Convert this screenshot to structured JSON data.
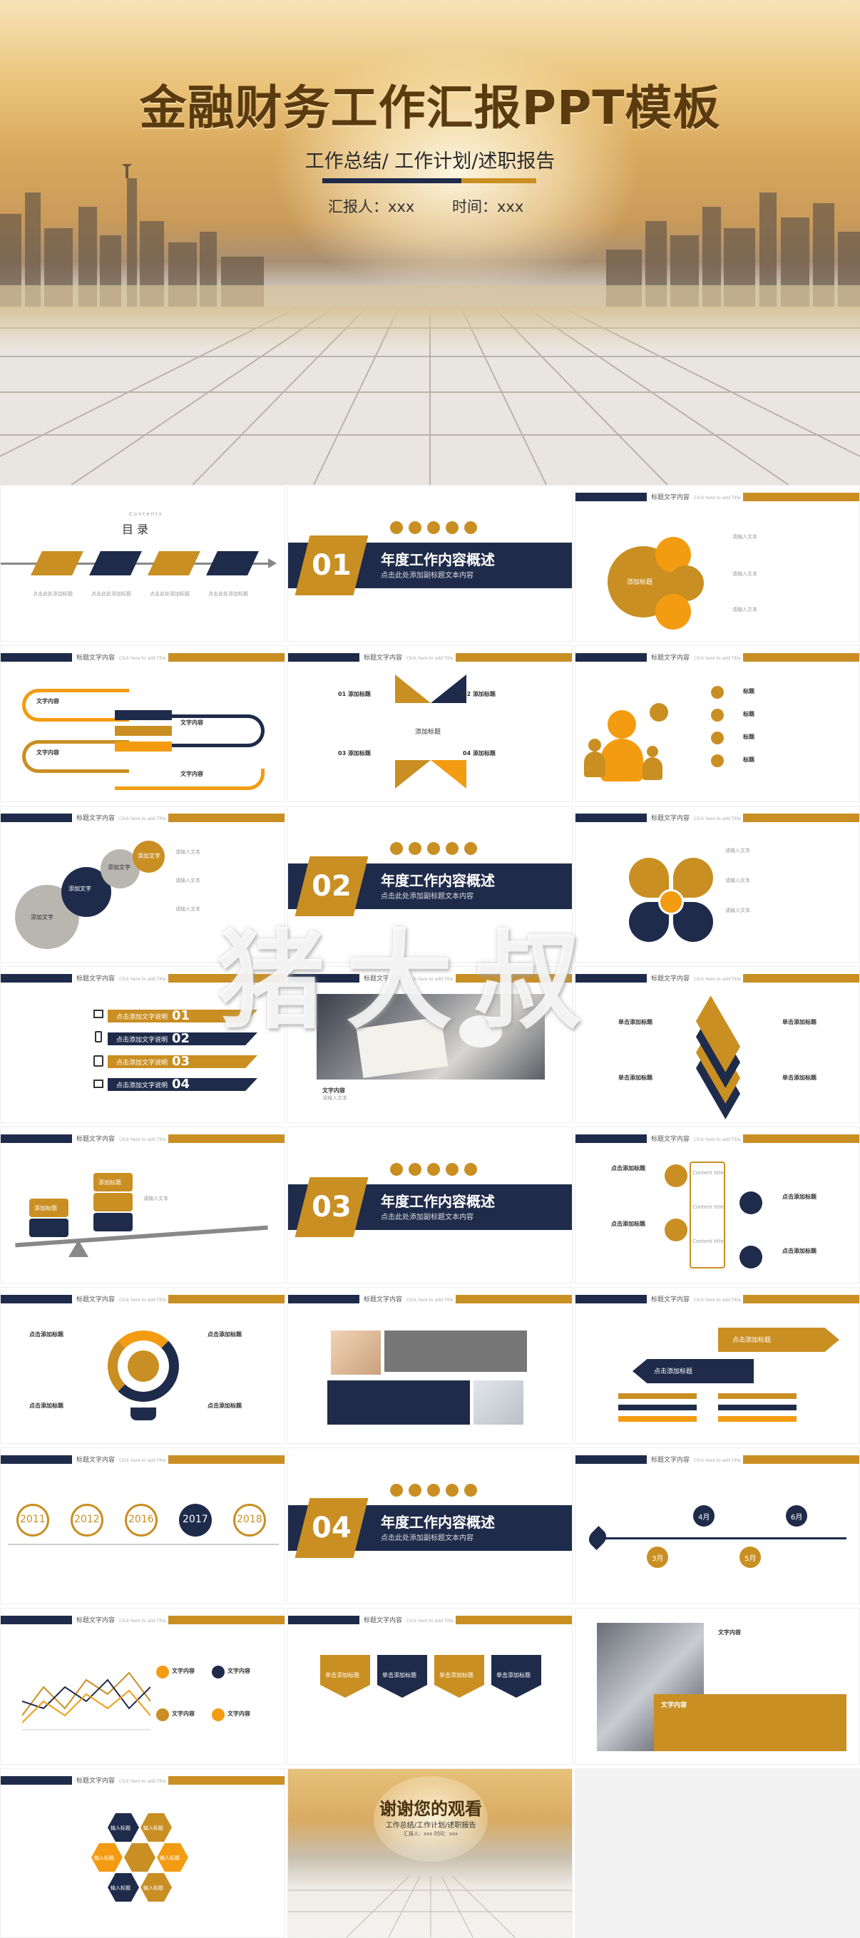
{
  "hero": {
    "title": "金融财务工作汇报PPT模板",
    "subtitle": "工作总结/ 工作计划/述职报告",
    "reporter": "汇报人：xxx",
    "time": "时间：xxx"
  },
  "header_text": "标题文字内容",
  "header_en": "Click here to add Title",
  "toc": {
    "contents": "Contents",
    "title": "目 录",
    "items": [
      "点击此处添加标题",
      "点击此处添加标题",
      "点击此处添加标题",
      "点击此处添加标题"
    ]
  },
  "sections": [
    {
      "num": "01",
      "title": "年度工作内容概述",
      "sub": "点击此处添加副标题文本内容"
    },
    {
      "num": "02",
      "title": "年度工作内容概述",
      "sub": "点击此处添加副标题文本内容"
    },
    {
      "num": "03",
      "title": "年度工作内容概述",
      "sub": "点击此处添加副标题文本内容"
    },
    {
      "num": "04",
      "title": "年度工作内容概述",
      "sub": "点击此处添加副标题文本内容"
    }
  ],
  "slide_labels": {
    "add_title": "添加标题",
    "add_text": "添加文本",
    "text_content": "文字内容",
    "add_text2": "添加文字",
    "click_add_title": "点击添加标题",
    "click_add_label": "点击添加标题",
    "click_text_desc": "点击添加文字说明",
    "content_title": "Content title",
    "input_title": "输入标题",
    "click_add_small": "单击添加标题",
    "enter_text": "请输入文本",
    "title": "标题"
  },
  "numbers": [
    "01",
    "02",
    "03",
    "04"
  ],
  "years": [
    "2011",
    "2012",
    "2016",
    "2017",
    "2018"
  ],
  "months": [
    "3月",
    "4月",
    "5月",
    "6月"
  ],
  "thanks": {
    "title": "谢谢您的观看",
    "subtitle": "工作总结/工作计划/述职报告",
    "meta": "汇报人：xxx    时间：xxx"
  },
  "watermark": "猪大叔",
  "colors": {
    "navy": "#1f2b4a",
    "gold": "#c98f23",
    "orange": "#f39c12"
  }
}
